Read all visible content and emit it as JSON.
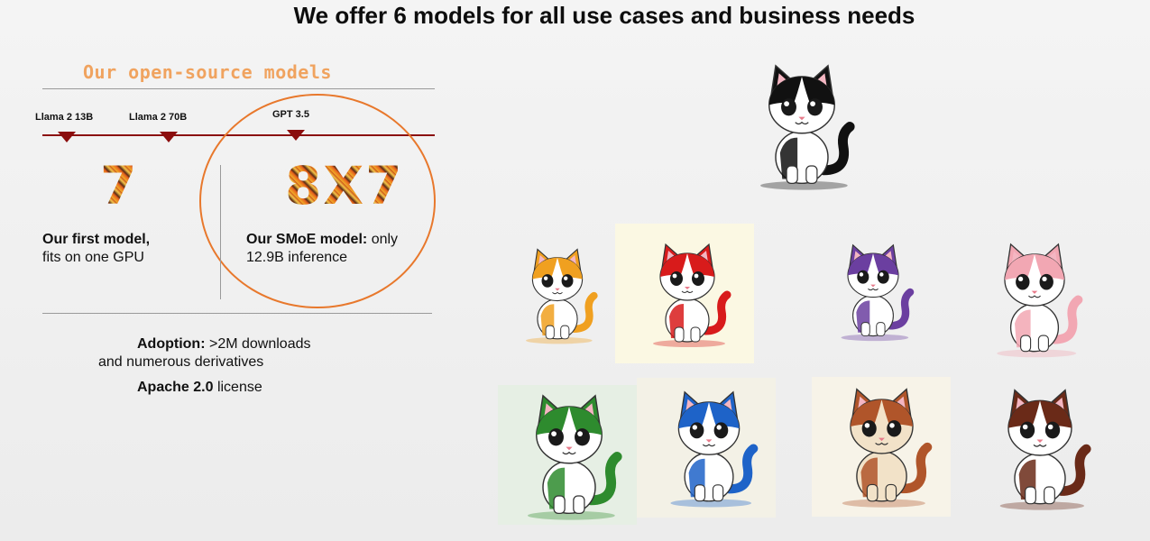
{
  "slide": {
    "title": "We offer 6 models for all use cases and business needs",
    "section_title": "Our open-source models"
  },
  "timeline": {
    "markers": [
      {
        "label": "Llama 2 13B"
      },
      {
        "label": "Llama 2 70B"
      },
      {
        "label": "GPT 3.5"
      }
    ]
  },
  "models": {
    "first": {
      "number": "7",
      "bold": "Our first model,",
      "rest": "fits on one GPU"
    },
    "smoe": {
      "number": "8X7",
      "bold": "Our SMoE model:",
      "rest": "only 12.9B inference"
    }
  },
  "adoption": {
    "bold": "Adoption:",
    "line1_rest": ">2M downloads",
    "line2": "and numerous derivatives",
    "license_bold": "Apache 2.0",
    "license_rest": "license"
  },
  "colors": {
    "accent_orange": "#e8782c",
    "timeline_red": "#8b1010",
    "section_title": "#f0a35f"
  },
  "images": {
    "cats": [
      {
        "name": "black-white-cat",
        "colors": [
          "#111111",
          "#ffffff"
        ]
      },
      {
        "name": "orange-cat",
        "colors": [
          "#f0a020",
          "#ffffff"
        ]
      },
      {
        "name": "red-cat",
        "colors": [
          "#d81b1b",
          "#ffffff"
        ]
      },
      {
        "name": "purple-cat",
        "colors": [
          "#6b3fa0",
          "#ffffff"
        ]
      },
      {
        "name": "pink-cat",
        "colors": [
          "#f2a7b3",
          "#ffffff"
        ]
      },
      {
        "name": "green-cat",
        "colors": [
          "#2e8b2e",
          "#ffffff"
        ]
      },
      {
        "name": "blue-cat",
        "colors": [
          "#1e63c8",
          "#ffffff"
        ]
      },
      {
        "name": "brown-beige-cat",
        "colors": [
          "#b0552a",
          "#f2e2c8"
        ]
      },
      {
        "name": "dark-brown-cat",
        "colors": [
          "#6a2a18",
          "#ffffff"
        ]
      }
    ]
  }
}
